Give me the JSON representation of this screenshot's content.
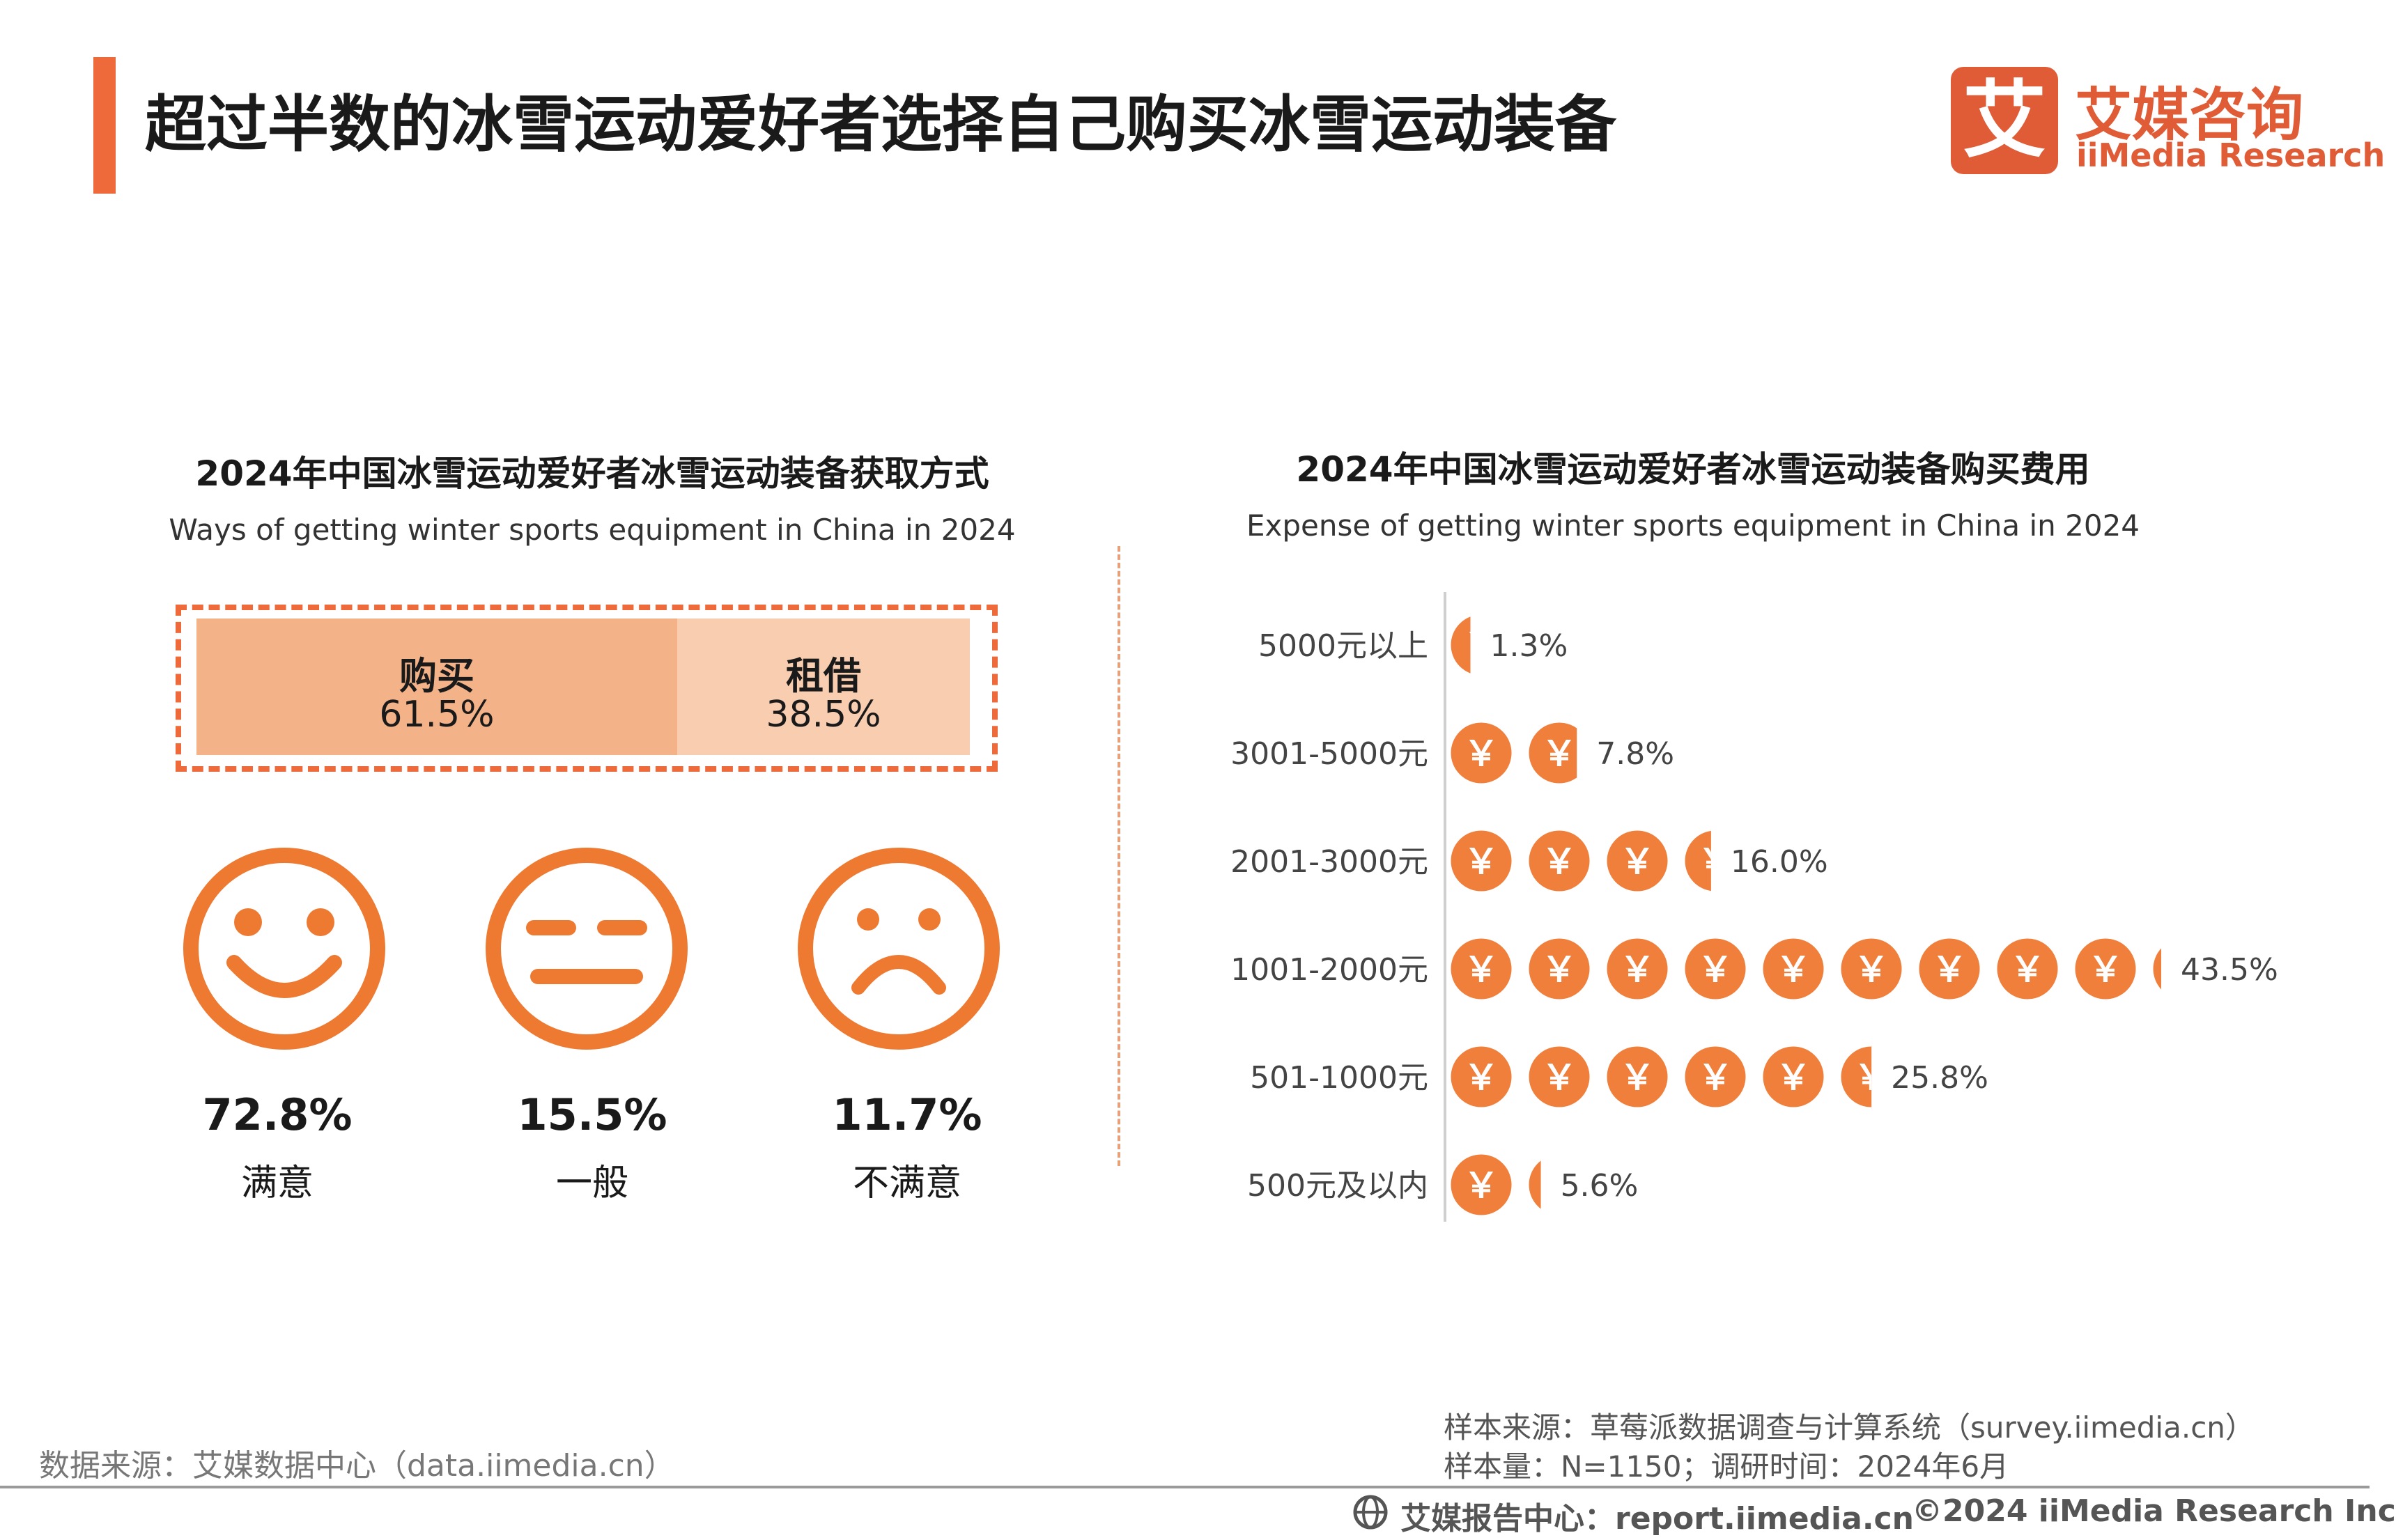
{
  "header": {
    "title": "超过半数的冰雪运动爱好者选择自己购买冰雪运动装备",
    "logo_mark": "艾",
    "logo_cn": "艾媒咨询",
    "logo_en": "iiMedia Research"
  },
  "colors": {
    "accent": "#ee6a3a",
    "coin": "#f07f3c",
    "buy": "#f3b287",
    "rent": "#f8cdb0"
  },
  "left_panel": {
    "title": "2024年中国冰雪运动爱好者冰雪运动装备获取方式",
    "subtitle": "Ways of getting winter sports equipment in China in 2024",
    "acquisition": [
      {
        "label": "购买",
        "value_text": "61.5%",
        "value": 61.5
      },
      {
        "label": "租借",
        "value_text": "38.5%",
        "value": 38.5
      }
    ],
    "satisfaction": [
      {
        "icon": "smile-face-icon",
        "value_text": "72.8%",
        "label": "满意"
      },
      {
        "icon": "neutral-face-icon",
        "value_text": "15.5%",
        "label": "一般"
      },
      {
        "icon": "sad-face-icon",
        "value_text": "11.7%",
        "label": "不满意"
      }
    ]
  },
  "right_panel": {
    "title": "2024年中国冰雪运动爱好者冰雪运动装备购买费用",
    "subtitle": "Expense of getting winter sports equipment in China in 2024",
    "coin_symbol": "￥"
  },
  "chart_data": {
    "type": "bar",
    "orientation": "horizontal",
    "categories": [
      "5000元以上",
      "3001-5000元",
      "2001-3000元",
      "1001-2000元",
      "501-1000元",
      "500元及以内"
    ],
    "values": [
      1.3,
      7.8,
      16.0,
      43.5,
      25.8,
      5.6
    ],
    "value_labels": [
      "1.3%",
      "7.8%",
      "16.0%",
      "43.5%",
      "25.8%",
      "5.6%"
    ],
    "grid": false
  },
  "footer": {
    "source_left": "数据来源：艾媒数据中心（data.iimedia.cn）",
    "sample_source": "样本来源：草莓派数据调查与计算系统（survey.iimedia.cn）",
    "sample_size": "样本量：N=1150；调研时间：2024年6月",
    "report_center": "艾媒报告中心：report.iimedia.cn",
    "copyright": "©2024  iiMedia Research  Inc"
  }
}
